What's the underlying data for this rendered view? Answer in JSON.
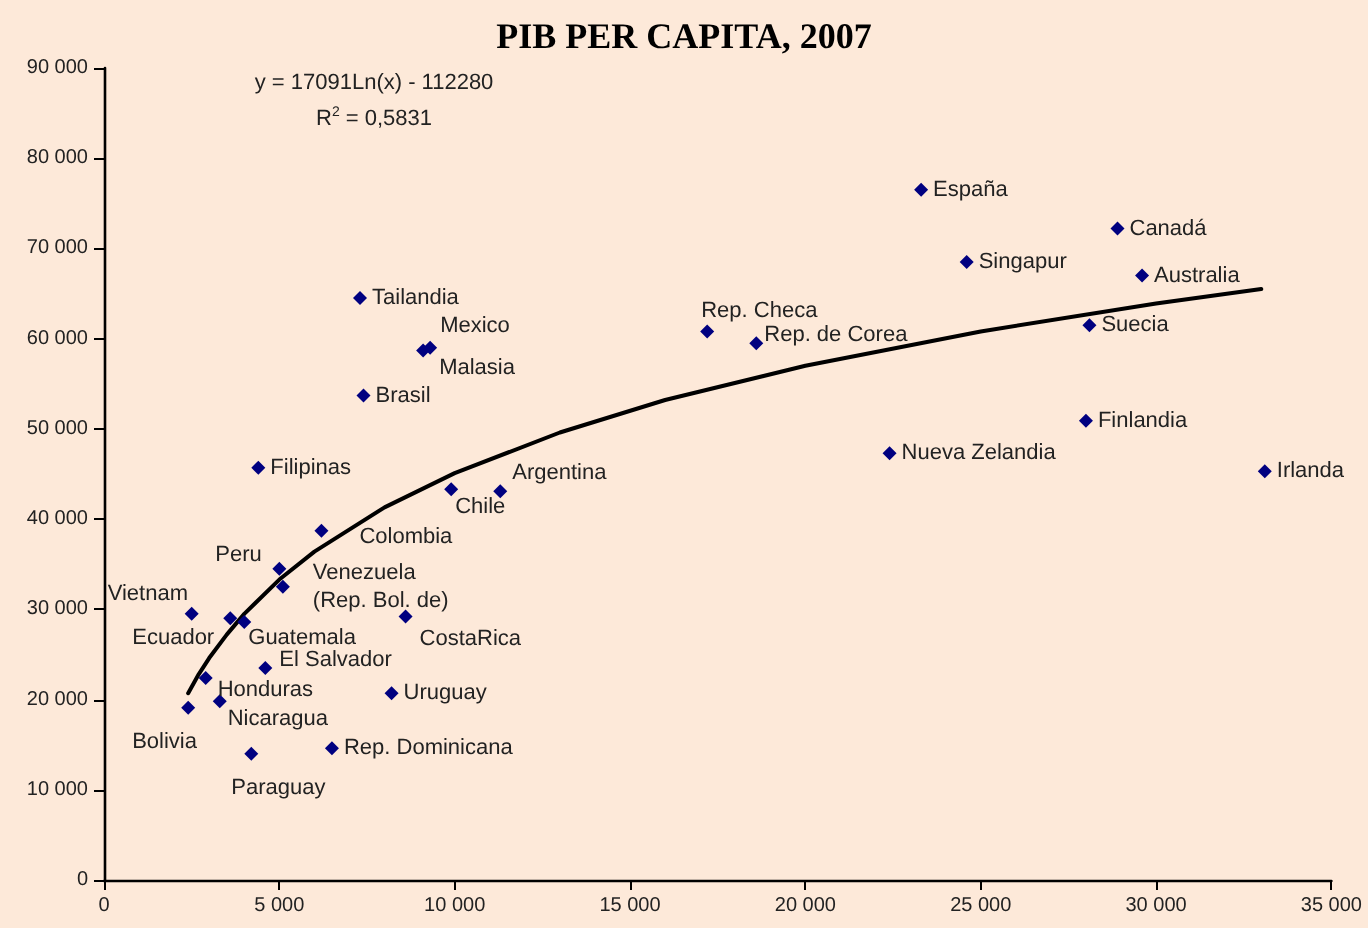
{
  "chart_data": {
    "type": "scatter",
    "title": "PIB PER CAPITA, 2007",
    "annotations": [
      "y = 17091Ln(x) - 112280",
      "R$^{2}$ = 0,5831"
    ],
    "marker": "diamond",
    "grid": false,
    "xlim": [
      0,
      35000
    ],
    "xticks": [
      {
        "value": 0,
        "label": "0"
      },
      {
        "value": 5000,
        "label": "5 000"
      },
      {
        "value": 10000,
        "label": "10 000"
      },
      {
        "value": 15000,
        "label": "15 000"
      },
      {
        "value": 20000,
        "label": "20 000"
      },
      {
        "value": 25000,
        "label": "25 000"
      },
      {
        "value": 30000,
        "label": "30 000"
      },
      {
        "value": 35000,
        "label": "35 000"
      }
    ],
    "ylim": [
      0,
      90000
    ],
    "yticks": [
      {
        "value": 0,
        "label": "0"
      },
      {
        "value": 10000,
        "label": "10 000"
      },
      {
        "value": 20000,
        "label": "20 000"
      },
      {
        "value": 30000,
        "label": "30 000"
      },
      {
        "value": 40000,
        "label": "40 000"
      },
      {
        "value": 50000,
        "label": "50 000"
      },
      {
        "value": 60000,
        "label": "60 000"
      },
      {
        "value": 70000,
        "label": "70 000"
      },
      {
        "value": 80000,
        "label": "80 000"
      },
      {
        "value": 90000,
        "label": "90 000"
      }
    ],
    "series": [
      {
        "color": "#000080",
        "x": [
          7300,
          9300,
          9100,
          7400,
          4400,
          9900,
          11300,
          6200,
          5000,
          5100,
          2500,
          3600,
          4000,
          8600,
          4600,
          2900,
          3300,
          2400,
          8200,
          6500,
          4200,
          23300,
          28900,
          24600,
          29600,
          17200,
          18600,
          28100,
          28000,
          22400,
          33100
        ],
        "values": [
          64500,
          59000,
          58700,
          53700,
          45700,
          43300,
          43100,
          38700,
          34500,
          32500,
          29500,
          29000,
          28600,
          29200,
          23500,
          22400,
          19800,
          19100,
          20700,
          14600,
          14000,
          76500,
          72200,
          68500,
          67000,
          60800,
          59500,
          61500,
          50900,
          47300,
          45300
        ],
        "value_labels": [
          "Tailandia",
          "Mexico",
          "Malasia",
          "Brasil",
          "Filipinas",
          "Chile",
          "Argentina",
          "Colombia",
          "Peru",
          "Venezuela\n(Rep. Bol. de)",
          "Vietnam",
          "Ecuador",
          "Guatemala",
          "CostaRica",
          "El Salvador",
          "Honduras",
          "Nicaragua",
          "Bolivia",
          "Uruguay",
          "Rep. Dominicana",
          "Paraguay",
          "España",
          "Canadá",
          "Singapur",
          "Australia",
          "Rep. Checa",
          "Rep. de Corea",
          "Suecia",
          "Finlandia",
          "Nueva Zelandia",
          "Irlanda"
        ]
      },
      {
        "type": "line",
        "color": "#000000",
        "marker": "none",
        "line_style": "solid",
        "x": [
          2400,
          2700,
          3000,
          3500,
          4000,
          5000,
          6000,
          8000,
          10000,
          13000,
          16000,
          20000,
          25000,
          30000,
          33000
        ],
        "values": [
          20700,
          22800,
          24600,
          27200,
          29500,
          33300,
          36400,
          41300,
          45100,
          49600,
          53200,
          57000,
          60800,
          63900,
          65500
        ]
      }
    ]
  }
}
